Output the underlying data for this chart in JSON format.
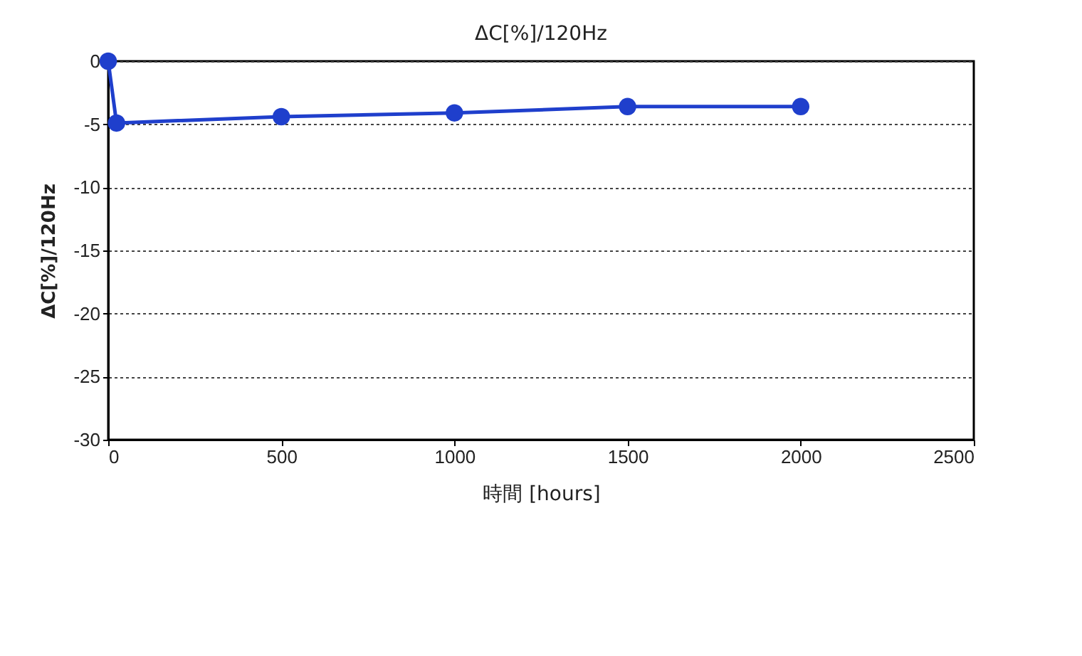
{
  "chart_data": {
    "type": "line",
    "title": "ΔC[%]/120Hz",
    "xlabel": "時間 [hours]",
    "ylabel": "ΔC[%]/120Hz",
    "x": [
      0,
      24,
      500,
      1000,
      1500,
      2000
    ],
    "series": [
      {
        "color": "#1f3fcc",
        "values": [
          0,
          -4.9,
          -4.4,
          -4.1,
          -3.6,
          -3.6
        ]
      }
    ],
    "xlim": [
      0,
      2500
    ],
    "xticks": [
      0,
      500,
      1000,
      1500,
      2000,
      2500
    ],
    "ylim": [
      -30,
      0
    ],
    "yticks": [
      -30,
      -25,
      -20,
      -15,
      -10,
      -5,
      0
    ],
    "grid": "y",
    "marker": "circle",
    "legend": false
  }
}
